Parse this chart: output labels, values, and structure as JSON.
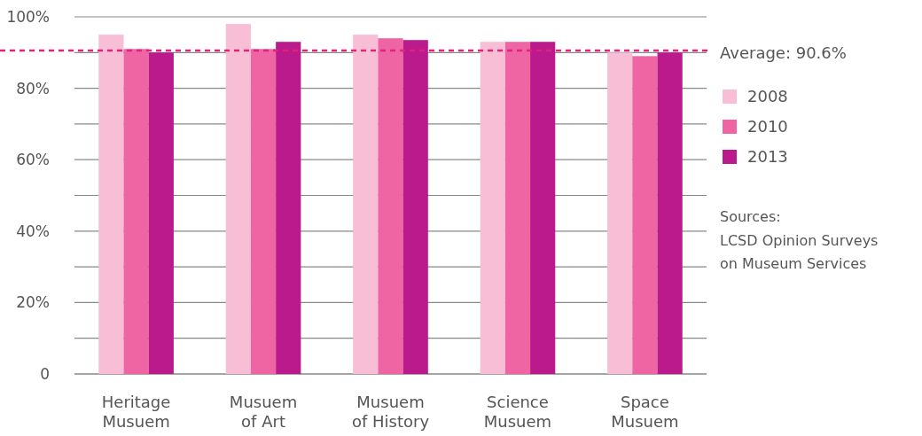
{
  "chart_data": {
    "type": "bar",
    "categories": [
      "Heritage Musuem",
      "Musuem of Art",
      "Musuem of History",
      "Science Musuem",
      "Space Musuem"
    ],
    "series": [
      {
        "name": "2008",
        "color": "#f7bed6",
        "values": [
          95,
          98,
          95,
          93,
          90
        ]
      },
      {
        "name": "2010",
        "color": "#ef65a3",
        "values": [
          91,
          91,
          94,
          93,
          89
        ]
      },
      {
        "name": "2013",
        "color": "#bb1a8c",
        "values": [
          90,
          93,
          93.5,
          93,
          90
        ]
      }
    ],
    "ylim": [
      0,
      100
    ],
    "yticks": [
      0,
      {
        "value": 10,
        "label": null
      },
      {
        "value": 20,
        "label": "20%"
      },
      {
        "value": 30,
        "label": null
      },
      {
        "value": 40,
        "label": "40%"
      },
      {
        "value": 50,
        "label": null
      },
      {
        "value": 60,
        "label": "60%"
      },
      {
        "value": 70,
        "label": null
      },
      {
        "value": 80,
        "label": "80%"
      },
      {
        "value": 90,
        "label": null
      },
      {
        "value": 100,
        "label": "100%"
      }
    ],
    "grid": "y",
    "legend": "right",
    "ref_lines": [
      {
        "axis": "y",
        "value": 90.6,
        "label": "Average: 90.6%",
        "color": "#e0237e",
        "line_style": "dashed"
      }
    ],
    "annotations": [
      "Sources:",
      "LCSD Opinion Surveys on Museum Services"
    ]
  }
}
